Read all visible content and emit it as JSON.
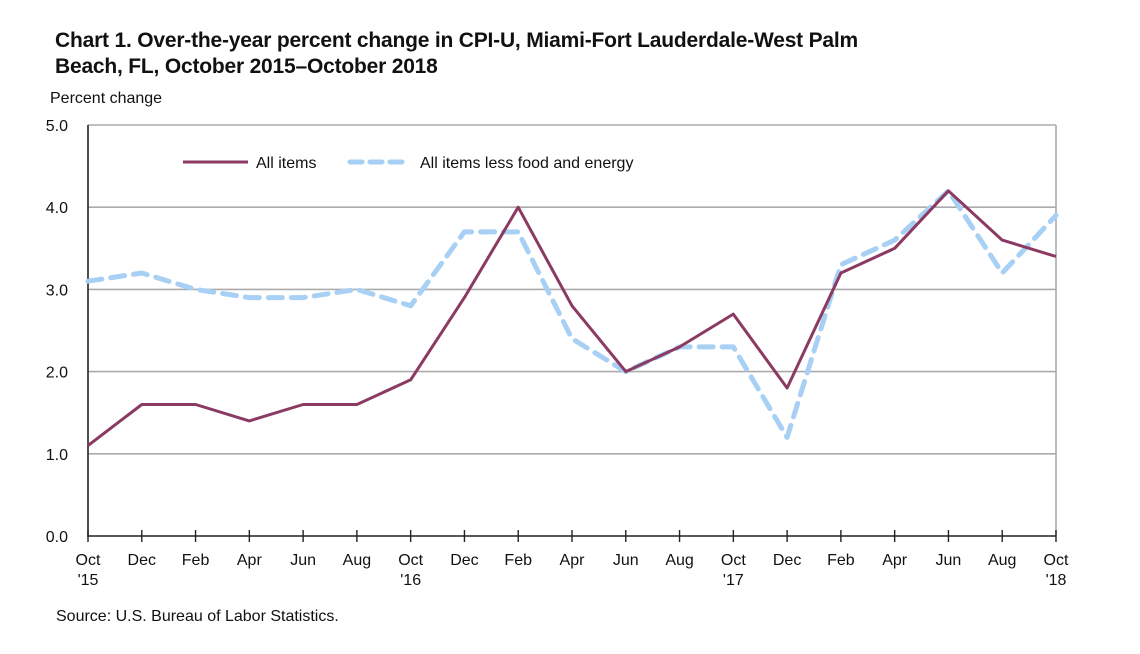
{
  "chart_data": {
    "type": "line",
    "title": "Chart 1. Over-the-year percent change in CPI-U, Miami-Fort Lauderdale-West Palm Beach, FL, October 2015–October  2018",
    "title_lines": [
      "Chart 1. Over-the-year percent change in CPI-U, Miami-Fort Lauderdale-West Palm",
      "Beach, FL, October 2015–October  2018"
    ],
    "ylabel": "Percent change",
    "xlabel": "",
    "ylim": [
      0.0,
      5.0
    ],
    "yticks": [
      "0.0",
      "1.0",
      "2.0",
      "3.0",
      "4.0",
      "5.0"
    ],
    "grid": true,
    "legend_position": "top-left",
    "x": [
      "Oct '15",
      "Dec",
      "Feb",
      "Apr",
      "Jun",
      "Aug",
      "Oct '16",
      "Dec",
      "Feb",
      "Apr",
      "Jun",
      "Aug",
      "Oct '17",
      "Dec",
      "Feb",
      "Apr",
      "Jun",
      "Aug",
      "Oct '18"
    ],
    "xtick_labels": [
      {
        "month": "Oct",
        "year": "'15"
      },
      {
        "month": "Dec",
        "year": ""
      },
      {
        "month": "Feb",
        "year": ""
      },
      {
        "month": "Apr",
        "year": ""
      },
      {
        "month": "Jun",
        "year": ""
      },
      {
        "month": "Aug",
        "year": ""
      },
      {
        "month": "Oct",
        "year": "'16"
      },
      {
        "month": "Dec",
        "year": ""
      },
      {
        "month": "Feb",
        "year": ""
      },
      {
        "month": "Apr",
        "year": ""
      },
      {
        "month": "Jun",
        "year": ""
      },
      {
        "month": "Aug",
        "year": ""
      },
      {
        "month": "Oct",
        "year": "'17"
      },
      {
        "month": "Dec",
        "year": ""
      },
      {
        "month": "Feb",
        "year": ""
      },
      {
        "month": "Apr",
        "year": ""
      },
      {
        "month": "Jun",
        "year": ""
      },
      {
        "month": "Aug",
        "year": ""
      },
      {
        "month": "Oct",
        "year": "'18"
      }
    ],
    "series": [
      {
        "name": "All items",
        "color": "#8B3A62",
        "style": "solid",
        "values": [
          1.1,
          1.6,
          1.6,
          1.4,
          1.6,
          1.6,
          1.9,
          2.9,
          4.0,
          2.8,
          2.0,
          2.3,
          2.7,
          1.8,
          3.2,
          3.5,
          4.2,
          3.6,
          3.4
        ]
      },
      {
        "name": "All items less food and energy",
        "color": "#A8D0F5",
        "style": "dashed",
        "values": [
          3.1,
          3.2,
          3.0,
          2.9,
          2.9,
          3.0,
          2.8,
          3.7,
          3.7,
          2.4,
          2.0,
          2.3,
          2.3,
          1.2,
          3.3,
          3.6,
          4.2,
          3.2,
          3.9
        ]
      }
    ],
    "source": "Source: U.S. Bureau of Labor Statistics."
  }
}
